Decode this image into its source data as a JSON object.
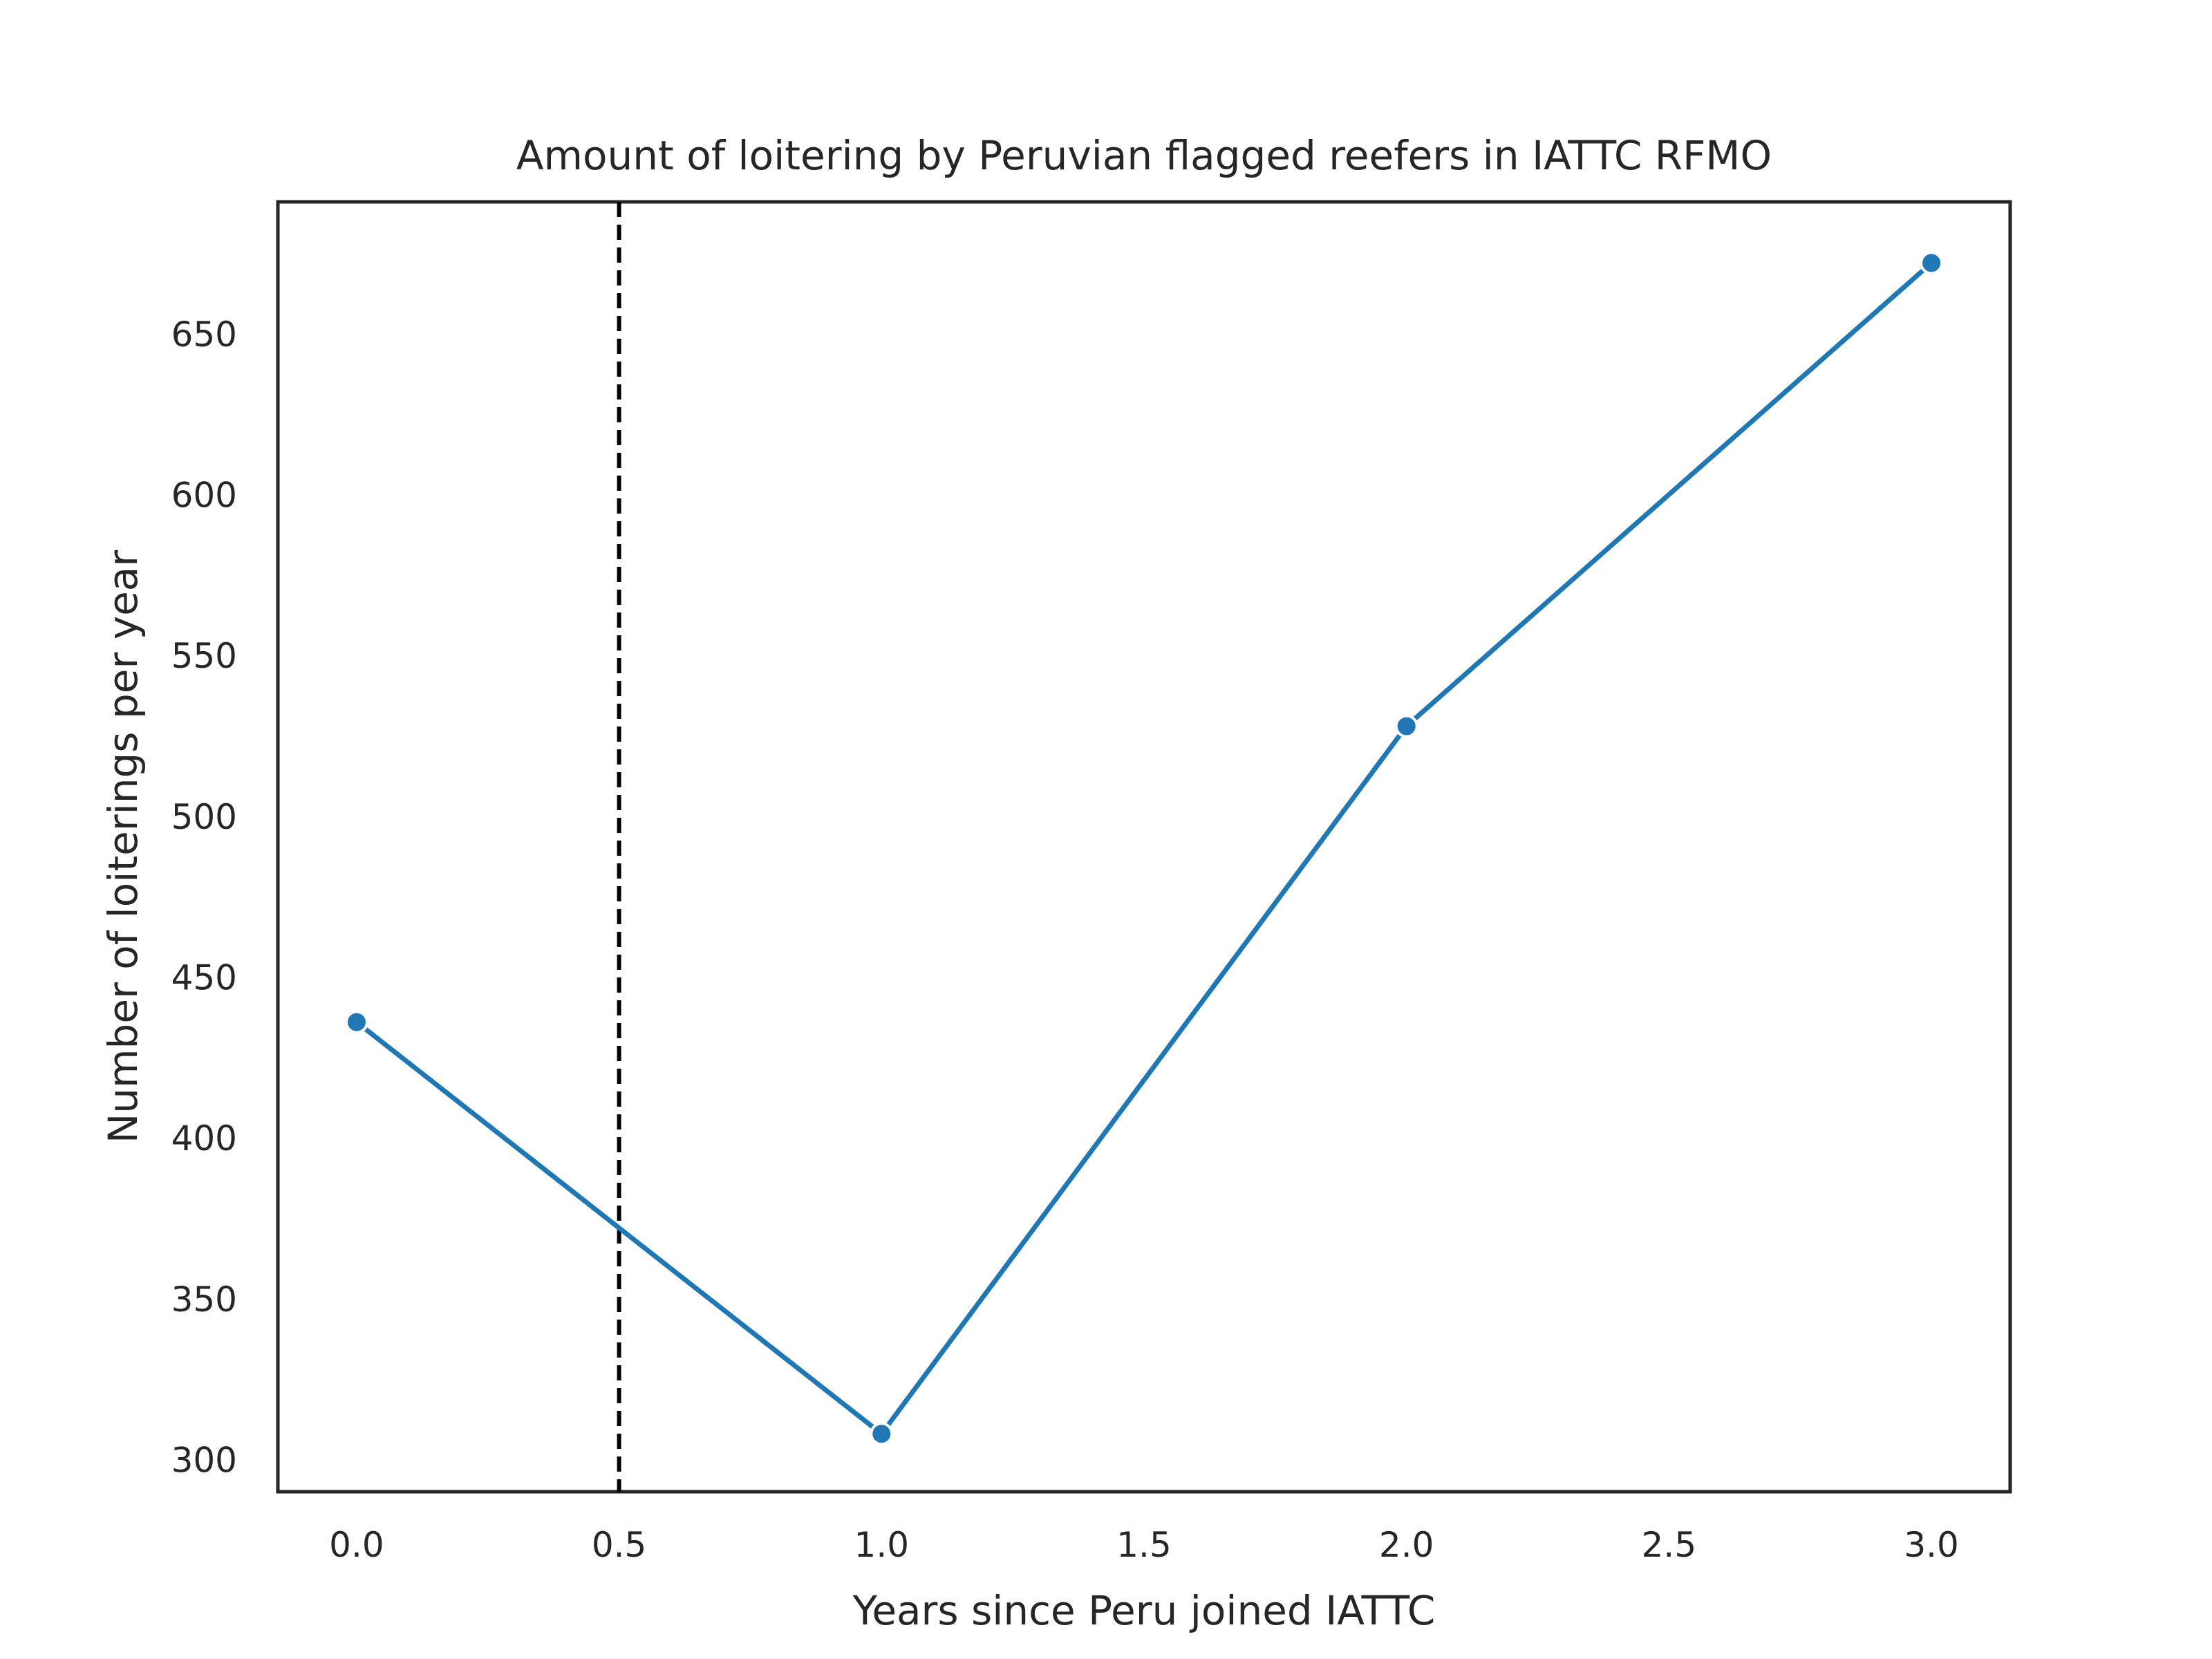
{
  "chart_data": {
    "type": "line",
    "title": "Amount of loitering by Peruvian flagged reefers in IATTC RFMO",
    "xlabel": "Years since Peru joined IATTC",
    "ylabel": "Number of loiterings per year",
    "x": [
      0,
      1,
      2,
      3
    ],
    "series": [
      {
        "values": [
          436,
          308,
          528,
          672
        ],
        "color": "#1f77b4"
      }
    ],
    "xlim": [
      -0.15,
      3.15
    ],
    "ylim": [
      290,
      691
    ],
    "xticks": [
      "0.0",
      "0.5",
      "1.0",
      "1.5",
      "2.0",
      "2.5",
      "3.0"
    ],
    "yticks": [
      "300",
      "350",
      "400",
      "450",
      "500",
      "550",
      "600",
      "650"
    ],
    "reference_line": {
      "axis": "x",
      "value": 0.5,
      "style": "dashed",
      "color": "#000000"
    },
    "grid": false,
    "legend": "none"
  }
}
